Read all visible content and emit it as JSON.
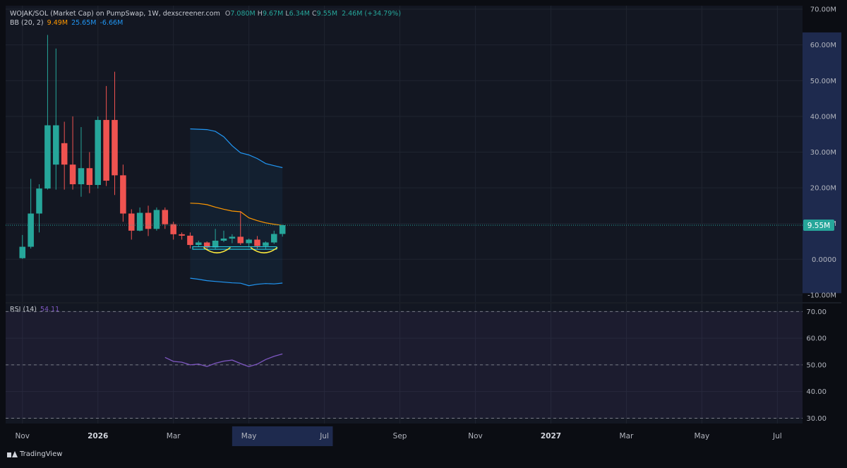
{
  "header": {
    "symbol": "WOJAK/SOL (Market Cap) on PumpSwap, 1W, dexscreener.com",
    "ohlc": [
      {
        "label": "O",
        "value": "7.080M"
      },
      {
        "label": "H",
        "value": "9.67M"
      },
      {
        "label": "L",
        "value": "6.34M"
      },
      {
        "label": "C",
        "value": "9.55M"
      }
    ],
    "change": "2.46M (+34.79%)"
  },
  "bb_legend": {
    "label": "BB (20, 2)",
    "basis": "9.49M",
    "upper": "25.65M",
    "lower": "-6.66M"
  },
  "rsi_legend": {
    "label": "RSI (14)",
    "value": "54.11"
  },
  "branding": {
    "name": "TradingView"
  },
  "colors": {
    "up": "#26a69a",
    "down": "#ef5350",
    "bb_basis": "#ff9800",
    "bb_band": "#2196f3",
    "rsi": "#7e57c2",
    "price_label": "#26a69a",
    "axis_highlight": "#1e2a4e",
    "background": "#131722",
    "grid": "#1f2430"
  },
  "chart_data": [
    {
      "type": "candlestick",
      "y_unit": "M",
      "ylim": [
        -12,
        71
      ],
      "y_ticks": [
        {
          "v": 70,
          "label": "70.00M"
        },
        {
          "v": 60,
          "label": "60.00M"
        },
        {
          "v": 50,
          "label": "50.00M"
        },
        {
          "v": 40,
          "label": "40.00M"
        },
        {
          "v": 30,
          "label": "30.00M"
        },
        {
          "v": 20,
          "label": "20.00M"
        },
        {
          "v": 10,
          "label": "10.00M"
        },
        {
          "v": 0,
          "label": "0.0000"
        },
        {
          "v": -10,
          "label": "-10.00M"
        }
      ],
      "x_ticks": [
        {
          "t": 0,
          "label": "Nov"
        },
        {
          "t": 9,
          "label": "2026"
        },
        {
          "t": 18,
          "label": "Mar"
        },
        {
          "t": 27,
          "label": "May"
        },
        {
          "t": 36,
          "label": "Jul"
        },
        {
          "t": 45,
          "label": "Sep"
        },
        {
          "t": 54,
          "label": "Nov"
        },
        {
          "t": 63,
          "label": "2027"
        },
        {
          "t": 72,
          "label": "Mar"
        },
        {
          "t": 81,
          "label": "May"
        },
        {
          "t": 90,
          "label": "Jul"
        }
      ],
      "x_range": [
        -2,
        93
      ],
      "highlighted_x_range": [
        25,
        37
      ],
      "last_price": {
        "value": 9.55,
        "label": "9.55M"
      },
      "candles": [
        {
          "t": 0,
          "o": 0.3,
          "h": 6.8,
          "l": 0.1,
          "c": 3.5
        },
        {
          "t": 1,
          "o": 3.5,
          "h": 22.5,
          "l": 3.0,
          "c": 12.8
        },
        {
          "t": 2,
          "o": 12.8,
          "h": 21.0,
          "l": 7.5,
          "c": 19.8
        },
        {
          "t": 3,
          "o": 19.8,
          "h": 62.8,
          "l": 19.5,
          "c": 37.5
        },
        {
          "t": 4,
          "o": 26.5,
          "h": 59.0,
          "l": 19.5,
          "c": 37.5
        },
        {
          "t": 5,
          "o": 32.5,
          "h": 38.5,
          "l": 19.5,
          "c": 26.5
        },
        {
          "t": 6,
          "o": 26.5,
          "h": 40.0,
          "l": 19.5,
          "c": 21.0
        },
        {
          "t": 7,
          "o": 21.0,
          "h": 37.0,
          "l": 17.5,
          "c": 25.5
        },
        {
          "t": 8,
          "o": 25.5,
          "h": 30.0,
          "l": 18.5,
          "c": 20.8
        },
        {
          "t": 9,
          "o": 20.8,
          "h": 40.0,
          "l": 19.8,
          "c": 39.0
        },
        {
          "t": 10,
          "o": 39.0,
          "h": 48.5,
          "l": 20.5,
          "c": 22.0
        },
        {
          "t": 11,
          "o": 39.0,
          "h": 52.5,
          "l": 18.0,
          "c": 23.5
        },
        {
          "t": 12,
          "o": 23.5,
          "h": 26.5,
          "l": 10.5,
          "c": 12.8
        },
        {
          "t": 13,
          "o": 12.8,
          "h": 14.0,
          "l": 5.5,
          "c": 8.0
        },
        {
          "t": 14,
          "o": 8.0,
          "h": 14.5,
          "l": 7.8,
          "c": 13.0
        },
        {
          "t": 15,
          "o": 13.0,
          "h": 15.0,
          "l": 6.5,
          "c": 8.5
        },
        {
          "t": 16,
          "o": 8.5,
          "h": 14.5,
          "l": 8.0,
          "c": 13.8
        },
        {
          "t": 17,
          "o": 13.8,
          "h": 14.5,
          "l": 8.5,
          "c": 9.8
        },
        {
          "t": 18,
          "o": 9.8,
          "h": 10.5,
          "l": 5.5,
          "c": 7.0
        },
        {
          "t": 19,
          "o": 7.0,
          "h": 7.5,
          "l": 5.5,
          "c": 6.6
        },
        {
          "t": 20,
          "o": 6.6,
          "h": 7.5,
          "l": 3.0,
          "c": 4.0
        },
        {
          "t": 21,
          "o": 4.0,
          "h": 5.2,
          "l": 3.5,
          "c": 4.7
        },
        {
          "t": 22,
          "o": 4.7,
          "h": 5.0,
          "l": 2.8,
          "c": 3.3
        },
        {
          "t": 23,
          "o": 3.3,
          "h": 8.5,
          "l": 2.8,
          "c": 5.2
        },
        {
          "t": 24,
          "o": 5.2,
          "h": 8.0,
          "l": 4.8,
          "c": 5.8
        },
        {
          "t": 25,
          "o": 5.8,
          "h": 7.0,
          "l": 4.5,
          "c": 6.3
        },
        {
          "t": 26,
          "o": 6.3,
          "h": 13.5,
          "l": 4.0,
          "c": 4.5
        },
        {
          "t": 27,
          "o": 4.5,
          "h": 5.8,
          "l": 3.3,
          "c": 5.5
        },
        {
          "t": 28,
          "o": 5.5,
          "h": 6.5,
          "l": 3.0,
          "c": 3.7
        },
        {
          "t": 29,
          "o": 3.7,
          "h": 5.0,
          "l": 2.8,
          "c": 4.7
        },
        {
          "t": 30,
          "o": 4.7,
          "h": 8.0,
          "l": 4.3,
          "c": 7.08
        },
        {
          "t": 31,
          "o": 7.08,
          "h": 9.67,
          "l": 6.34,
          "c": 9.55
        }
      ],
      "bb_upper": [
        {
          "t": 20,
          "v": 36.5
        },
        {
          "t": 21,
          "v": 36.4
        },
        {
          "t": 22,
          "v": 36.3
        },
        {
          "t": 23,
          "v": 35.8
        },
        {
          "t": 24,
          "v": 34.3
        },
        {
          "t": 25,
          "v": 31.8
        },
        {
          "t": 26,
          "v": 29.8
        },
        {
          "t": 27,
          "v": 29.2
        },
        {
          "t": 28,
          "v": 28.2
        },
        {
          "t": 29,
          "v": 26.8
        },
        {
          "t": 30,
          "v": 26.2
        },
        {
          "t": 31,
          "v": 25.65
        }
      ],
      "bb_basis": [
        {
          "t": 20,
          "v": 15.7
        },
        {
          "t": 21,
          "v": 15.6
        },
        {
          "t": 22,
          "v": 15.3
        },
        {
          "t": 23,
          "v": 14.6
        },
        {
          "t": 24,
          "v": 14.0
        },
        {
          "t": 25,
          "v": 13.5
        },
        {
          "t": 26,
          "v": 13.3
        },
        {
          "t": 27,
          "v": 11.6
        },
        {
          "t": 28,
          "v": 10.8
        },
        {
          "t": 29,
          "v": 10.2
        },
        {
          "t": 30,
          "v": 9.8
        },
        {
          "t": 31,
          "v": 9.49
        }
      ],
      "bb_lower": [
        {
          "t": 20,
          "v": -5.3
        },
        {
          "t": 21,
          "v": -5.6
        },
        {
          "t": 22,
          "v": -6.0
        },
        {
          "t": 23,
          "v": -6.2
        },
        {
          "t": 24,
          "v": -6.4
        },
        {
          "t": 25,
          "v": -6.6
        },
        {
          "t": 26,
          "v": -6.7
        },
        {
          "t": 27,
          "v": -7.4
        },
        {
          "t": 28,
          "v": -7.0
        },
        {
          "t": 29,
          "v": -6.8
        },
        {
          "t": 30,
          "v": -6.9
        },
        {
          "t": 31,
          "v": -6.66
        }
      ],
      "pattern_box": {
        "t_start": 20.3,
        "t_end": 30.3,
        "y_low": 2.8,
        "y_high": 3.5
      },
      "pattern_arcs": [
        {
          "t_start": 21.6,
          "t_end": 24.8,
          "y_top": 3.3,
          "y_bottom": 1.8
        },
        {
          "t_start": 27.2,
          "t_end": 30.4,
          "y_top": 3.3,
          "y_bottom": 1.8
        }
      ]
    },
    {
      "type": "line",
      "name": "RSI (14)",
      "ylim": [
        28,
        73
      ],
      "y_ticks": [
        {
          "v": 70,
          "label": "70.00"
        },
        {
          "v": 60,
          "label": "60.00"
        },
        {
          "v": 50,
          "label": "50.00"
        },
        {
          "v": 40,
          "label": "40.00"
        },
        {
          "v": 30,
          "label": "30.00"
        }
      ],
      "band": [
        30,
        70
      ],
      "dashed_levels": [
        70,
        50,
        30
      ],
      "points": [
        {
          "t": 17,
          "v": 52.8
        },
        {
          "t": 18,
          "v": 51.3
        },
        {
          "t": 19,
          "v": 51.0
        },
        {
          "t": 20,
          "v": 50.0
        },
        {
          "t": 21,
          "v": 50.3
        },
        {
          "t": 22,
          "v": 49.4
        },
        {
          "t": 23,
          "v": 50.6
        },
        {
          "t": 24,
          "v": 51.4
        },
        {
          "t": 25,
          "v": 51.8
        },
        {
          "t": 26,
          "v": 50.5
        },
        {
          "t": 27,
          "v": 49.3
        },
        {
          "t": 28,
          "v": 50.3
        },
        {
          "t": 29,
          "v": 52.0
        },
        {
          "t": 30,
          "v": 53.2
        },
        {
          "t": 31,
          "v": 54.11
        }
      ]
    }
  ]
}
